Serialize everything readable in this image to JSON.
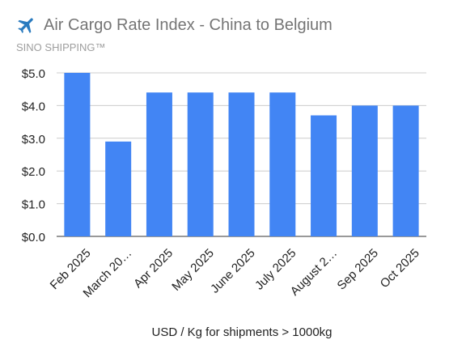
{
  "chart_data": {
    "type": "bar",
    "title": "Air Cargo Rate Index - China to Belgium",
    "subtitle": "SINO SHIPPING™",
    "xlabel": "USD / Kg for shipments > 1000kg",
    "ylabel": "",
    "categories": [
      "Feb 2025",
      "March 20…",
      "Apr 2025",
      "May 2025",
      "June 2025",
      "July 2025",
      "August 2…",
      "Sep 2025",
      "Oct 2025"
    ],
    "values": [
      5.0,
      2.9,
      4.4,
      4.4,
      4.4,
      4.4,
      3.7,
      4.0,
      4.0
    ],
    "ylim": [
      0,
      5
    ],
    "yticks": [
      "$0.0",
      "$1.0",
      "$2.0",
      "$3.0",
      "$4.0",
      "$5.0"
    ],
    "grid": true,
    "bar_color": "#4285f4",
    "title_icon": "airplane-icon",
    "icon_color": "#2a7bbf"
  }
}
